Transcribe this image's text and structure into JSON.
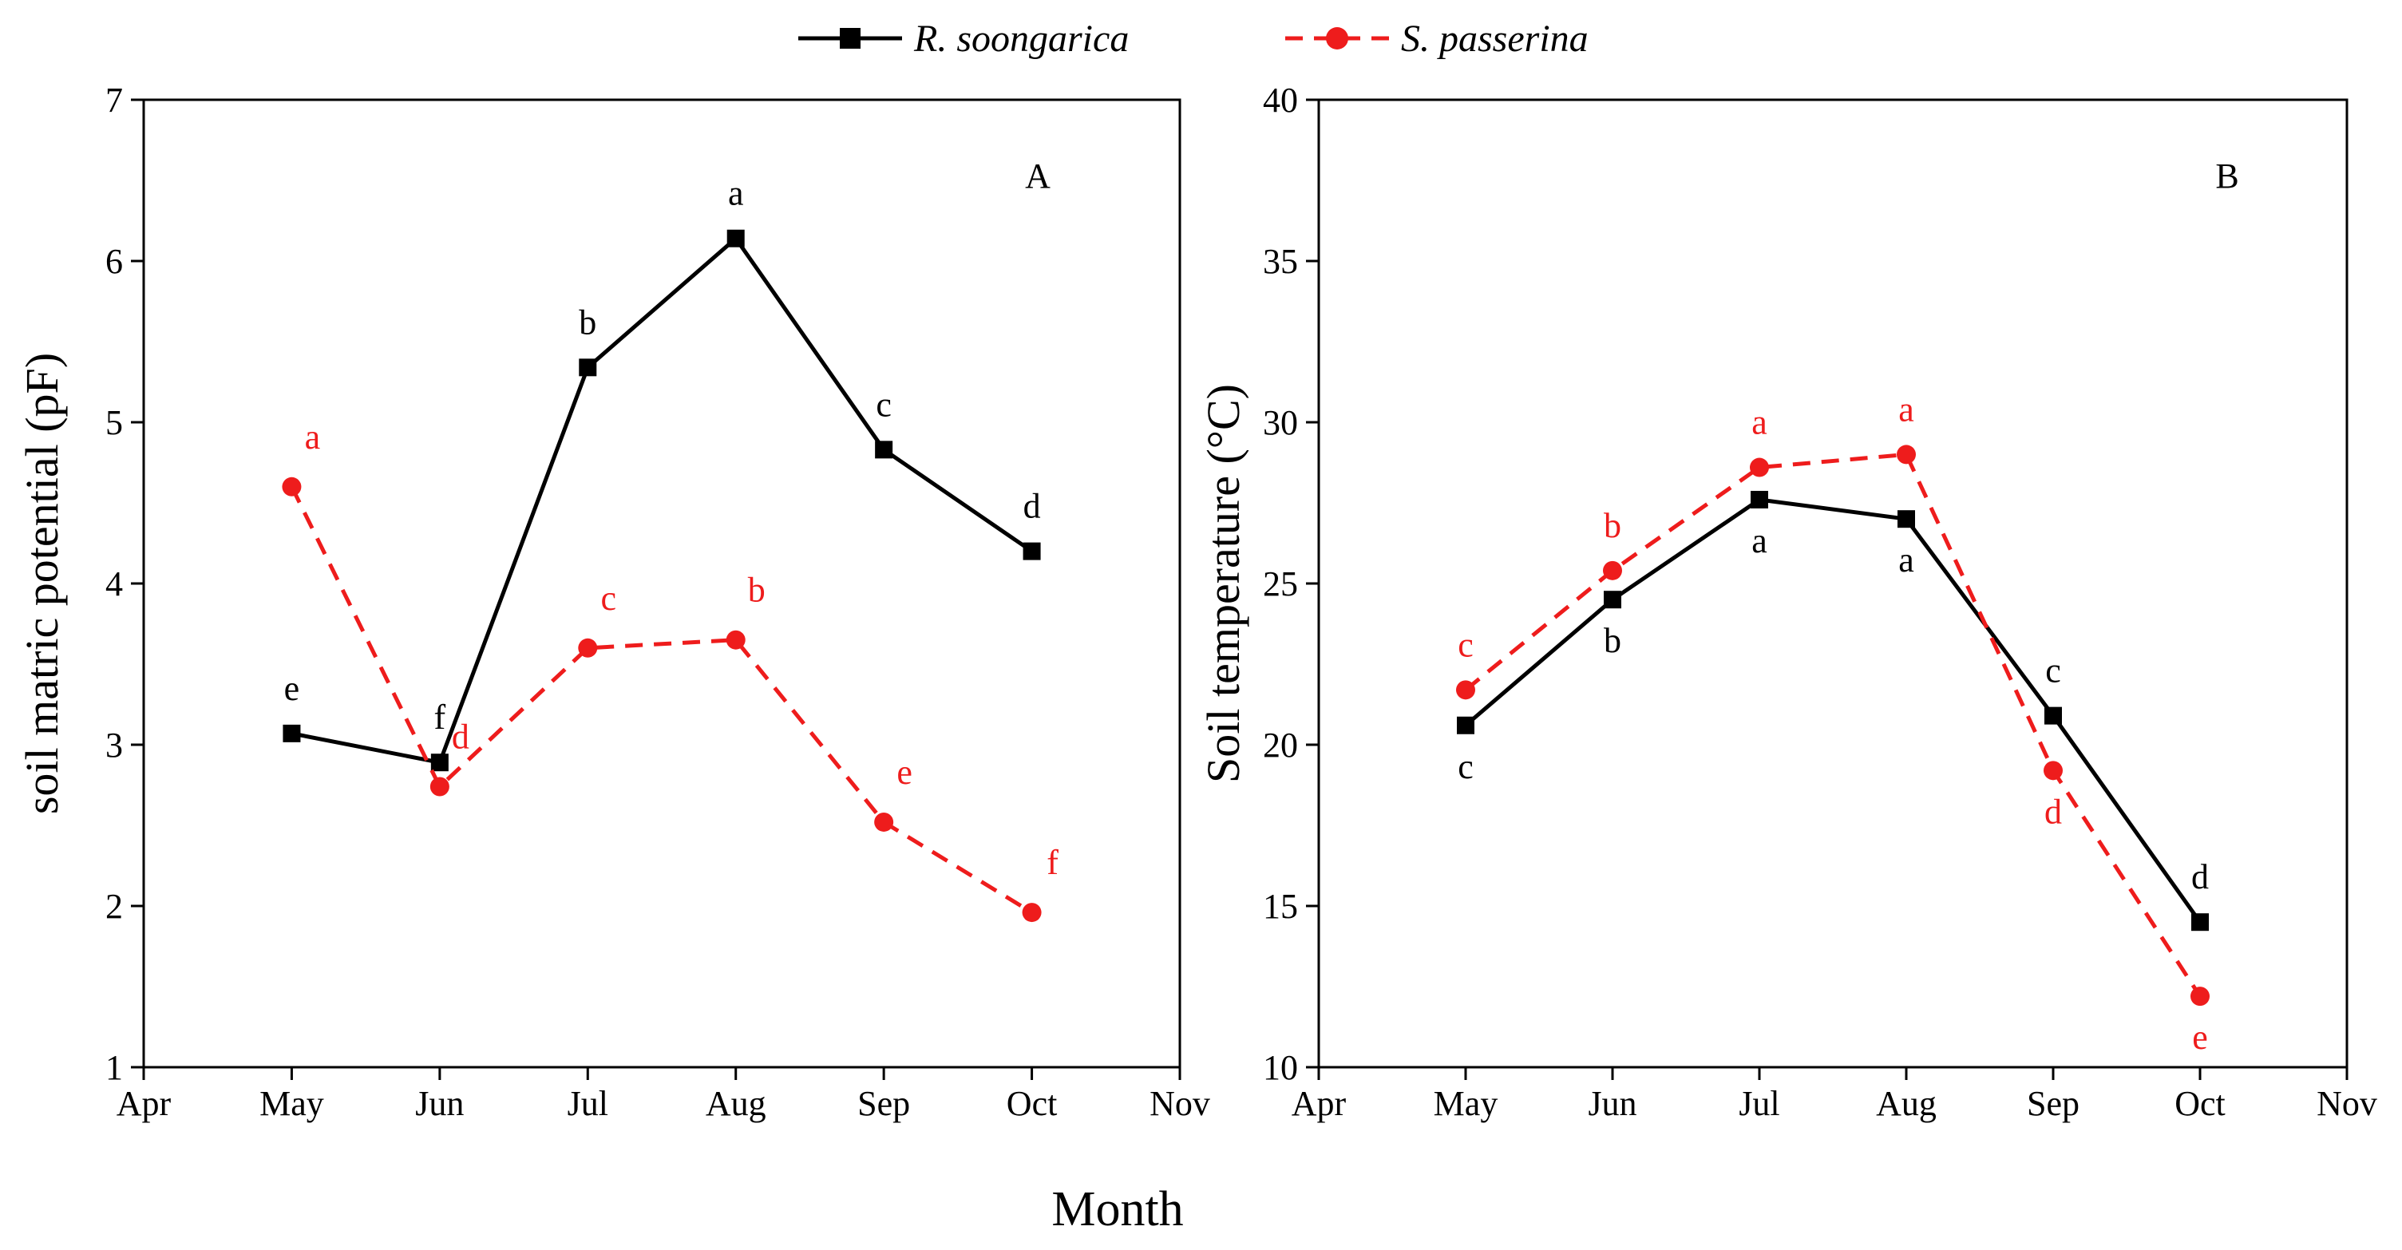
{
  "figure": {
    "xlabel": "Month",
    "legend": [
      {
        "name": "R. soongarica",
        "color": "#000000",
        "marker": "square",
        "dash": "solid"
      },
      {
        "name": "S. passerina",
        "color": "#ee1c1c",
        "marker": "circle",
        "dash": "dashed"
      }
    ]
  },
  "chart_data": [
    {
      "type": "line",
      "panel_label": "A",
      "title": "",
      "xlabel": "",
      "ylabel": "soil matric potential (pF)",
      "categories": [
        "Apr",
        "May",
        "Jun",
        "Jul",
        "Aug",
        "Sep",
        "Oct",
        "Nov"
      ],
      "ylim": [
        1,
        7
      ],
      "yticks": [
        1,
        2,
        3,
        4,
        5,
        6,
        7
      ],
      "grid": false,
      "series": [
        {
          "name": "R. soongarica",
          "color": "#000000",
          "marker": "square",
          "dash": "solid",
          "x": [
            "May",
            "Jun",
            "Jul",
            "Aug",
            "Sep",
            "Oct"
          ],
          "values": [
            3.07,
            2.89,
            5.34,
            6.14,
            4.83,
            4.2
          ],
          "labels": [
            "e",
            "f",
            "b",
            "a",
            "c",
            "d"
          ],
          "label_pos": [
            "above",
            "above",
            "above",
            "above",
            "above",
            "above"
          ]
        },
        {
          "name": "S. passerina",
          "color": "#ee1c1c",
          "marker": "circle",
          "dash": "dashed",
          "x": [
            "May",
            "Jun",
            "Jul",
            "Aug",
            "Sep",
            "Oct"
          ],
          "values": [
            4.6,
            2.74,
            3.6,
            3.65,
            2.52,
            1.96
          ],
          "labels": [
            "a",
            "d",
            "c",
            "b",
            "e",
            "f"
          ],
          "label_pos": [
            "above-right",
            "above-right",
            "above-right",
            "above-right",
            "above-right",
            "above-right"
          ]
        }
      ]
    },
    {
      "type": "line",
      "panel_label": "B",
      "title": "",
      "xlabel": "",
      "ylabel": "Soil temperature (°C)",
      "categories": [
        "Apr",
        "May",
        "Jun",
        "Jul",
        "Aug",
        "Sep",
        "Oct",
        "Nov"
      ],
      "ylim": [
        10,
        40
      ],
      "yticks": [
        10,
        15,
        20,
        25,
        30,
        35,
        40
      ],
      "grid": false,
      "series": [
        {
          "name": "R. soongarica",
          "color": "#000000",
          "marker": "square",
          "dash": "solid",
          "x": [
            "May",
            "Jun",
            "Jul",
            "Aug",
            "Sep",
            "Oct"
          ],
          "values": [
            20.6,
            24.5,
            27.6,
            27.0,
            20.9,
            14.5
          ],
          "labels": [
            "c",
            "b",
            "a",
            "a",
            "c",
            "d"
          ],
          "label_pos": [
            "below",
            "below",
            "below",
            "below",
            "above",
            "above"
          ]
        },
        {
          "name": "S. passerina",
          "color": "#ee1c1c",
          "marker": "circle",
          "dash": "dashed",
          "x": [
            "May",
            "Jun",
            "Jul",
            "Aug",
            "Sep",
            "Oct"
          ],
          "values": [
            21.7,
            25.4,
            28.6,
            29.0,
            19.2,
            12.2
          ],
          "labels": [
            "c",
            "b",
            "a",
            "a",
            "d",
            "e"
          ],
          "label_pos": [
            "above",
            "above",
            "above",
            "above",
            "below",
            "below"
          ]
        }
      ]
    }
  ]
}
